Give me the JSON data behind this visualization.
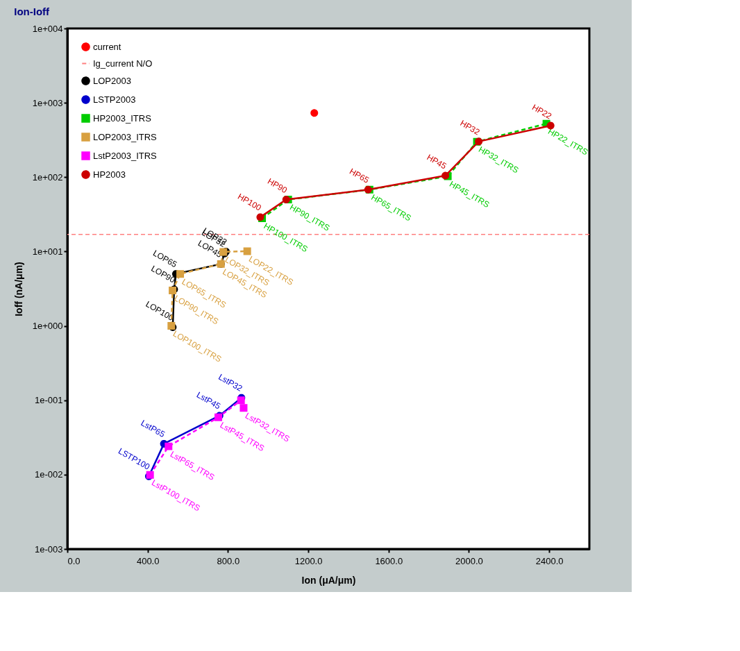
{
  "chart_data": {
    "type": "line",
    "title": "Ion-Ioff",
    "xlabel": "Ion (μA/μm)",
    "ylabel": "Ioff (nA/μm)",
    "log": "y",
    "grid": false,
    "legend": "top left",
    "xlim": [
      0,
      2600
    ],
    "xticks": [
      {
        "value": 0,
        "label": "0.0"
      },
      {
        "value": 400,
        "label": "400.0"
      },
      {
        "value": 800,
        "label": "800.0"
      },
      {
        "value": 1200,
        "label": "1200.0"
      },
      {
        "value": 1600,
        "label": "1600.0"
      },
      {
        "value": 2000,
        "label": "2000.0"
      },
      {
        "value": 2400,
        "label": "2400.0"
      }
    ],
    "ylim": [
      0.001,
      10000
    ],
    "yticks": [
      {
        "value": 0.001,
        "label": "1e-003"
      },
      {
        "value": 0.01,
        "label": "1e-002"
      },
      {
        "value": 0.1,
        "label": "1e-001"
      },
      {
        "value": 1,
        "label": "1e+000"
      },
      {
        "value": 10,
        "label": "1e+001"
      },
      {
        "value": 100,
        "label": "1e+002"
      },
      {
        "value": 1000,
        "label": "1e+003"
      },
      {
        "value": 10000,
        "label": "1e+004"
      }
    ],
    "ref_lines": [
      {
        "axis": "y",
        "value": 17,
        "label": "Ig_current N/O",
        "color": "#ff8080",
        "line_style": "dashed"
      }
    ],
    "series": [
      {
        "name": "current",
        "type": "scatter",
        "marker": "circle",
        "color": "#ff0000",
        "x": [
          1230
        ],
        "values": [
          730
        ]
      },
      {
        "name": "LOP2003",
        "marker": "circle",
        "line_style": "solid",
        "color": "#000000",
        "x": [
          525,
          532,
          541,
          765,
          783,
          790
        ],
        "values": [
          0.96,
          3.1,
          5.0,
          6.8,
          9.4,
          10
        ],
        "value_labels": [
          "LOP100",
          "LOP90",
          "LOP65",
          "LOP45",
          "LOP32",
          "LOP22"
        ]
      },
      {
        "name": "LSTP2003",
        "marker": "circle",
        "line_style": "solid",
        "color": "#0000cc",
        "x": [
          406,
          481,
          758,
          867
        ],
        "values": [
          0.0095,
          0.026,
          0.062,
          0.108
        ],
        "value_labels": [
          "LSTP100",
          "LstP65",
          "LstP45",
          "LstP32"
        ]
      },
      {
        "name": "HP2003_ITRS",
        "marker": "square",
        "line_style": "dashed",
        "color": "#00cc00",
        "x": [
          970,
          1100,
          1505,
          1895,
          2040,
          2386
        ],
        "values": [
          28,
          50,
          68,
          103,
          300,
          525
        ],
        "value_labels": [
          "HP100_ITRS",
          "HP90_ITRS",
          "HP65_ITRS",
          "HP45_ITRS",
          "HP32_ITRS",
          "HP22_ITRS"
        ]
      },
      {
        "name": "LOP2003_ITRS",
        "marker": "square",
        "line_style": "dashed",
        "color": "#d8a040",
        "x": [
          518,
          524,
          562,
          765,
          777,
          896
        ],
        "values": [
          1.0,
          3.0,
          5.0,
          6.8,
          9.9,
          10.1
        ],
        "value_labels": [
          "LOP100_ITRS",
          "LOP90_ITRS",
          "LOP65_ITRS",
          "LOP45_ITRS",
          "LOP32_ITRS",
          "LOP22_ITRS"
        ]
      },
      {
        "name": "LstP2003_ITRS",
        "marker": "square",
        "line_style": "dashed",
        "color": "#ff00ff",
        "x": [
          412,
          504,
          752,
          865,
          878
        ],
        "values": [
          0.0099,
          0.024,
          0.059,
          0.1,
          0.079
        ],
        "value_labels": [
          "LstP100_ITRS",
          "LstP65_ITRS",
          "LstP45_ITRS",
          null,
          "LstP32_ITRS"
        ]
      },
      {
        "name": "HP2003",
        "marker": "circle",
        "line_style": "solid",
        "color": "#cc0000",
        "x": [
          961,
          1090,
          1498,
          1883,
          2049,
          2407
        ],
        "values": [
          29,
          50,
          68,
          105,
          302,
          494
        ],
        "value_labels": [
          "HP100",
          "HP90",
          "HP65",
          "HP45",
          "HP32",
          "HP22"
        ]
      }
    ]
  }
}
